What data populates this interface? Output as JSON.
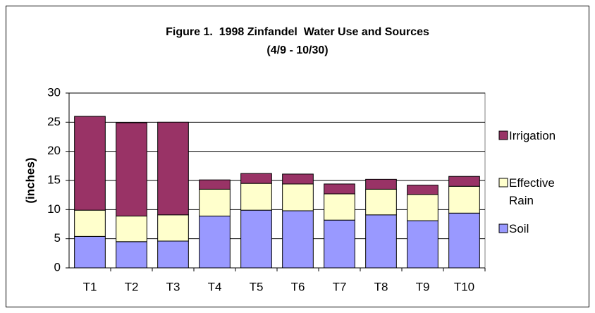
{
  "chart_data": {
    "type": "stacked_bar",
    "title": "Figure 1.  1998 Zinfandel  Water Use and Sources",
    "subtitle": "(4/9 - 10/30)",
    "y_label": "(inches)",
    "categories": [
      "T1",
      "T2",
      "T3",
      "T4",
      "T5",
      "T6",
      "T7",
      "T8",
      "T9",
      "T10"
    ],
    "series": [
      {
        "name": "Soil",
        "color": "#9999ff",
        "values": [
          5.4,
          4.5,
          4.6,
          8.9,
          9.9,
          9.8,
          8.2,
          9.1,
          8.1,
          9.4
        ]
      },
      {
        "name": "Effective Rain",
        "color": "#ffffcc",
        "values": [
          4.5,
          4.4,
          4.5,
          4.6,
          4.6,
          4.6,
          4.5,
          4.4,
          4.5,
          4.6
        ]
      },
      {
        "name": "Irrigation",
        "color": "#993366",
        "values": [
          16.1,
          16.0,
          15.9,
          1.6,
          1.7,
          1.7,
          1.7,
          1.7,
          1.6,
          1.7
        ]
      }
    ],
    "ylim": [
      0,
      30
    ],
    "yticks": [
      0,
      5,
      10,
      15,
      20,
      25,
      30
    ],
    "grid": true,
    "legend": "right"
  }
}
